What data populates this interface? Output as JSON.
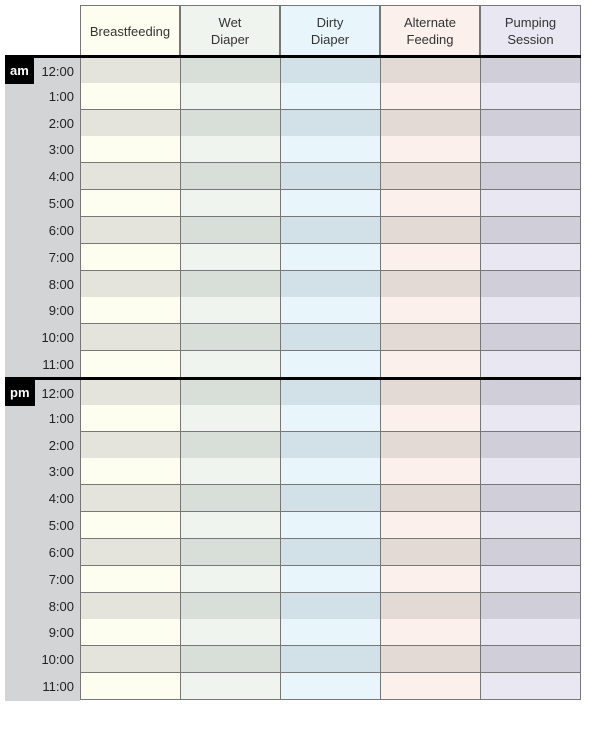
{
  "columns": [
    {
      "label": "Breastfeeding",
      "light": "#fdfdf0",
      "dark": "#e4e4dc"
    },
    {
      "label": "Wet\nDiaper",
      "light": "#eff4ee",
      "dark": "#d7dfd8"
    },
    {
      "label": "Dirty\nDiaper",
      "light": "#e8f6fc",
      "dark": "#d2e0e7"
    },
    {
      "label": "Alternate\nFeeding",
      "light": "#fbf0ec",
      "dark": "#e3d9d5"
    },
    {
      "label": "Pumping\nSession",
      "light": "#e9e7f2",
      "dark": "#d0cfd9"
    }
  ],
  "sections": [
    {
      "label": "am",
      "times": [
        "12:00",
        "1:00",
        "2:00",
        "3:00",
        "4:00",
        "5:00",
        "6:00",
        "7:00",
        "8:00",
        "9:00",
        "10:00",
        "11:00"
      ]
    },
    {
      "label": "pm",
      "times": [
        "12:00",
        "1:00",
        "2:00",
        "3:00",
        "4:00",
        "5:00",
        "6:00",
        "7:00",
        "8:00",
        "9:00",
        "10:00",
        "11:00"
      ]
    }
  ]
}
